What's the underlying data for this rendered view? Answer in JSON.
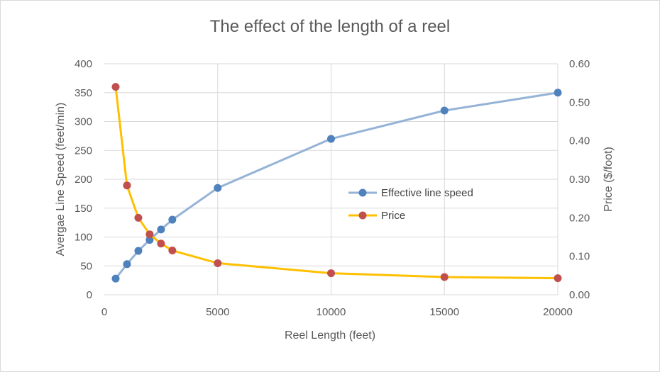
{
  "chart_data": {
    "type": "line",
    "title": "The effect of the length of a reel",
    "xlabel": "Reel Length (feet)",
    "ylabel": "Avergae Line Speed (feet/min)",
    "y2label": "Price ($/foot)",
    "xlim": [
      0,
      20000
    ],
    "ylim": [
      0,
      400
    ],
    "y2lim": [
      0,
      0.6
    ],
    "x_ticks": [
      "0",
      "5000",
      "10000",
      "15000",
      "20000"
    ],
    "y_ticks": [
      "0",
      "50",
      "100",
      "150",
      "200",
      "250",
      "300",
      "350",
      "400"
    ],
    "y2_ticks": [
      "0.00",
      "0.10",
      "0.20",
      "0.30",
      "0.40",
      "0.50",
      "0.60"
    ],
    "grid": true,
    "legend_position": "right-center",
    "series": [
      {
        "name": "Effective line speed",
        "axis": "left",
        "line_color": "#95b3d7",
        "marker_color": "#4f81bd",
        "x": [
          500,
          1000,
          1500,
          2000,
          2500,
          3000,
          5000,
          10000,
          15000,
          20000
        ],
        "values": [
          28,
          53,
          76,
          95,
          113,
          130,
          185,
          270,
          319,
          350
        ]
      },
      {
        "name": "Price",
        "axis": "right",
        "line_color": "#ffc000",
        "marker_color": "#c0504d",
        "x": [
          500,
          1000,
          1500,
          2000,
          2500,
          3000,
          5000,
          10000,
          15000,
          20000
        ],
        "values": [
          0.54,
          0.284,
          0.2,
          0.157,
          0.133,
          0.115,
          0.082,
          0.056,
          0.046,
          0.043
        ]
      }
    ]
  }
}
